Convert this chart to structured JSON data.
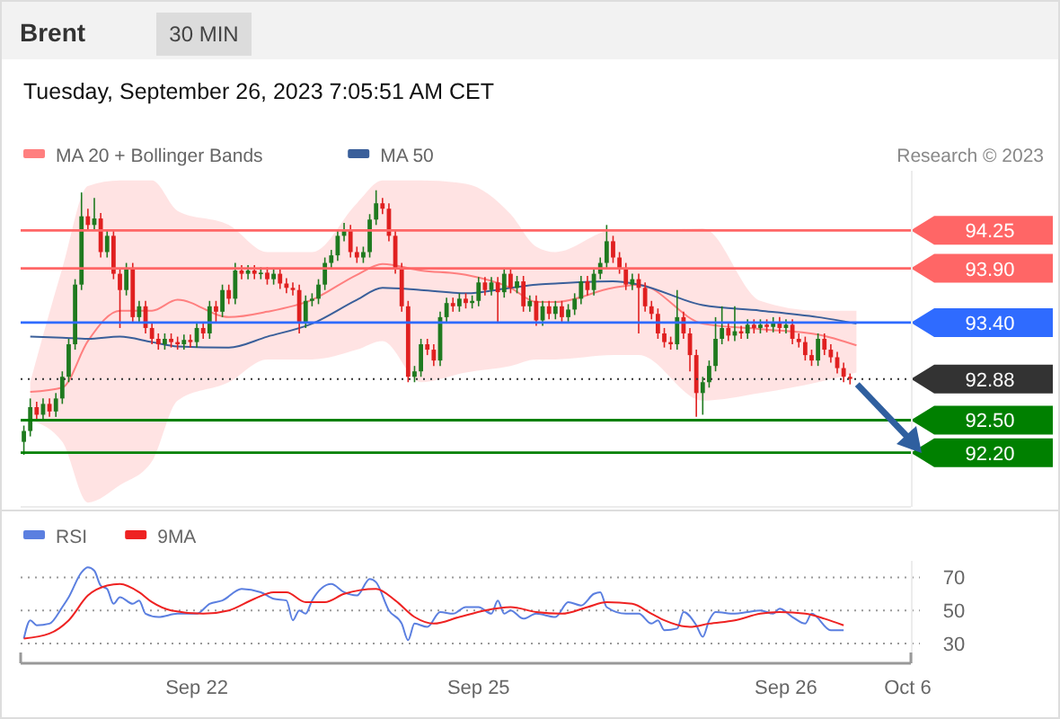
{
  "chart_data": [
    {
      "type": "candlestick",
      "title": "Brent",
      "subtitle": "Tuesday, September 26, 2023 7:05:51 AM CET",
      "annotations": [
        "30 MIN",
        "Research © 2023"
      ],
      "legend": "top left",
      "tick_labels": "y",
      "ylim": [
        91.7,
        94.8
      ],
      "yticks": [
        94.25,
        {
          "value": 93.9,
          "label": "93.90"
        },
        {
          "value": 93.4,
          "label": "93.40"
        },
        92.88,
        {
          "value": 92.5,
          "label": "92.50"
        },
        {
          "value": 92.2,
          "label": "92.20"
        }
      ],
      "categories": [
        null,
        null,
        null,
        null,
        null,
        null,
        null,
        null,
        null,
        null,
        null,
        null,
        null,
        null,
        null,
        null,
        null,
        null,
        null,
        null,
        null,
        null,
        null,
        null,
        null,
        null,
        null,
        null,
        null,
        null,
        null,
        null,
        null,
        null,
        null,
        null,
        null,
        null,
        null,
        null,
        null,
        null,
        null,
        null,
        null,
        null,
        null,
        null,
        null,
        null,
        null,
        null,
        null,
        null,
        null,
        null,
        null,
        null,
        null,
        null,
        null,
        null,
        null,
        null,
        null,
        null,
        null,
        null,
        null,
        null,
        null,
        null,
        null,
        null,
        null,
        null,
        null,
        null,
        null,
        null,
        null,
        null,
        null,
        null,
        null,
        null,
        null,
        null,
        null,
        null,
        null,
        null,
        null,
        null,
        null,
        null,
        null,
        null,
        null,
        null,
        null,
        null,
        null,
        null,
        null,
        null,
        null,
        null,
        null,
        null,
        null,
        null,
        null,
        null,
        null,
        null,
        null,
        null,
        null,
        null,
        null,
        null,
        null,
        null,
        null,
        null,
        null,
        null,
        null,
        null,
        null,
        null,
        null,
        null,
        null,
        null,
        null,
        null,
        null
      ],
      "ohlc": [
        [
          92.3,
          92.45,
          92.18,
          92.4
        ],
        [
          92.4,
          92.7,
          92.35,
          92.62
        ],
        [
          92.62,
          92.67,
          92.5,
          92.55
        ],
        [
          92.55,
          92.7,
          92.5,
          92.65
        ],
        [
          92.65,
          92.7,
          92.53,
          92.58
        ],
        [
          92.58,
          92.75,
          92.53,
          92.7
        ],
        [
          92.7,
          92.95,
          92.65,
          92.9
        ],
        [
          92.9,
          93.25,
          92.85,
          93.2
        ],
        [
          93.2,
          93.8,
          93.15,
          93.75
        ],
        [
          93.75,
          94.6,
          93.7,
          94.38
        ],
        [
          94.38,
          94.45,
          94.25,
          94.3
        ],
        [
          94.3,
          94.55,
          94.25,
          94.36
        ],
        [
          94.36,
          94.41,
          94.0,
          94.05
        ],
        [
          94.05,
          94.25,
          94.0,
          94.2
        ],
        [
          94.2,
          94.25,
          93.8,
          93.85
        ],
        [
          93.85,
          93.9,
          93.35,
          93.7
        ],
        [
          93.7,
          93.95,
          93.65,
          93.9
        ],
        [
          93.9,
          93.95,
          93.4,
          93.45
        ],
        [
          93.45,
          93.6,
          93.4,
          93.55
        ],
        [
          93.55,
          93.6,
          93.3,
          93.35
        ],
        [
          93.35,
          93.4,
          93.2,
          93.25
        ],
        [
          93.25,
          93.3,
          93.15,
          93.2
        ],
        [
          93.2,
          93.3,
          93.15,
          93.25
        ],
        [
          93.25,
          93.3,
          93.17,
          93.22
        ],
        [
          93.22,
          93.27,
          93.15,
          93.2
        ],
        [
          93.2,
          93.29,
          93.15,
          93.24
        ],
        [
          93.24,
          93.29,
          93.17,
          93.22
        ],
        [
          93.22,
          93.4,
          93.17,
          93.35
        ],
        [
          93.35,
          93.4,
          93.25,
          93.3
        ],
        [
          93.3,
          93.6,
          93.25,
          93.55
        ],
        [
          93.55,
          93.6,
          93.4,
          93.5
        ],
        [
          93.5,
          93.75,
          93.45,
          93.7
        ],
        [
          93.7,
          93.75,
          93.57,
          93.62
        ],
        [
          93.62,
          93.95,
          93.57,
          93.88
        ],
        [
          93.88,
          93.93,
          93.8,
          93.85
        ],
        [
          93.85,
          93.93,
          93.8,
          93.88
        ],
        [
          93.88,
          93.93,
          93.8,
          93.85
        ],
        [
          93.85,
          93.91,
          93.8,
          93.86
        ],
        [
          93.86,
          93.91,
          93.75,
          93.8
        ],
        [
          93.8,
          93.9,
          93.75,
          93.85
        ],
        [
          93.85,
          93.9,
          93.71,
          93.76
        ],
        [
          93.76,
          93.81,
          93.67,
          93.72
        ],
        [
          93.72,
          93.77,
          93.65,
          93.7
        ],
        [
          93.7,
          93.75,
          93.3,
          93.4
        ],
        [
          93.4,
          93.65,
          93.35,
          93.6
        ],
        [
          93.6,
          93.67,
          93.55,
          93.62
        ],
        [
          93.62,
          93.8,
          93.57,
          93.75
        ],
        [
          93.75,
          94.0,
          93.7,
          93.95
        ],
        [
          93.95,
          94.07,
          93.9,
          94.02
        ],
        [
          94.02,
          94.25,
          93.97,
          94.2
        ],
        [
          94.2,
          94.32,
          94.15,
          94.25
        ],
        [
          94.25,
          94.3,
          94.0,
          94.05
        ],
        [
          94.05,
          94.1,
          93.95,
          94.0
        ],
        [
          94.0,
          94.1,
          93.95,
          94.05
        ],
        [
          94.05,
          94.4,
          94.0,
          94.35
        ],
        [
          94.35,
          94.62,
          94.3,
          94.5
        ],
        [
          94.5,
          94.55,
          94.4,
          94.45
        ],
        [
          94.45,
          94.5,
          94.15,
          94.2
        ],
        [
          94.2,
          94.25,
          93.85,
          93.9
        ],
        [
          93.9,
          93.95,
          93.5,
          93.55
        ],
        [
          93.55,
          93.6,
          92.85,
          92.9
        ],
        [
          92.9,
          93.0,
          92.85,
          92.95
        ],
        [
          92.95,
          93.25,
          92.9,
          93.2
        ],
        [
          93.2,
          93.25,
          93.1,
          93.15
        ],
        [
          93.15,
          93.2,
          93.0,
          93.05
        ],
        [
          93.05,
          93.5,
          93.0,
          93.45
        ],
        [
          93.45,
          93.63,
          93.4,
          93.58
        ],
        [
          93.58,
          93.63,
          93.5,
          93.55
        ],
        [
          93.55,
          93.67,
          93.5,
          93.62
        ],
        [
          93.62,
          93.67,
          93.53,
          93.58
        ],
        [
          93.58,
          93.65,
          93.53,
          93.6
        ],
        [
          93.6,
          93.82,
          93.55,
          93.77
        ],
        [
          93.77,
          93.82,
          93.65,
          93.7
        ],
        [
          93.7,
          93.82,
          93.65,
          93.77
        ],
        [
          93.77,
          93.82,
          93.4,
          93.68
        ],
        [
          93.68,
          93.9,
          93.63,
          93.85
        ],
        [
          93.85,
          93.9,
          93.67,
          93.72
        ],
        [
          93.72,
          93.83,
          93.67,
          93.78
        ],
        [
          93.78,
          93.83,
          93.5,
          93.55
        ],
        [
          93.55,
          93.65,
          93.5,
          93.6
        ],
        [
          93.6,
          93.65,
          93.37,
          93.42
        ],
        [
          93.42,
          93.6,
          93.37,
          93.55
        ],
        [
          93.55,
          93.6,
          93.43,
          93.48
        ],
        [
          93.48,
          93.6,
          93.43,
          93.55
        ],
        [
          93.55,
          93.6,
          93.4,
          93.45
        ],
        [
          93.45,
          93.57,
          93.4,
          93.52
        ],
        [
          93.52,
          93.67,
          93.47,
          93.62
        ],
        [
          93.62,
          93.83,
          93.57,
          93.78
        ],
        [
          93.78,
          93.83,
          93.65,
          93.7
        ],
        [
          93.7,
          93.9,
          93.65,
          93.85
        ],
        [
          93.85,
          94.0,
          93.8,
          93.95
        ],
        [
          93.95,
          94.3,
          93.9,
          94.15
        ],
        [
          94.15,
          94.2,
          93.95,
          94.0
        ],
        [
          94.0,
          94.05,
          93.85,
          93.9
        ],
        [
          93.9,
          93.95,
          93.7,
          93.75
        ],
        [
          93.75,
          93.85,
          93.7,
          93.8
        ],
        [
          93.8,
          93.85,
          93.3,
          93.72
        ],
        [
          93.72,
          93.77,
          93.5,
          93.55
        ],
        [
          93.55,
          93.6,
          93.43,
          93.48
        ],
        [
          93.48,
          93.53,
          93.25,
          93.3
        ],
        [
          93.3,
          93.35,
          93.17,
          93.22
        ],
        [
          93.22,
          93.27,
          93.15,
          93.2
        ],
        [
          93.2,
          93.7,
          93.15,
          93.45
        ],
        [
          93.45,
          93.5,
          93.25,
          93.3
        ],
        [
          93.3,
          93.35,
          92.95,
          93.1
        ],
        [
          93.1,
          93.15,
          92.53,
          92.75
        ],
        [
          92.75,
          92.9,
          92.55,
          92.85
        ],
        [
          92.85,
          93.05,
          92.8,
          93.0
        ],
        [
          93.0,
          93.45,
          92.95,
          93.25
        ],
        [
          93.25,
          93.55,
          93.2,
          93.35
        ],
        [
          93.35,
          93.4,
          93.23,
          93.28
        ],
        [
          93.28,
          93.55,
          93.23,
          93.32
        ],
        [
          93.32,
          93.37,
          93.25,
          93.3
        ],
        [
          93.3,
          93.43,
          93.25,
          93.38
        ],
        [
          93.38,
          93.43,
          93.3,
          93.35
        ],
        [
          93.35,
          93.43,
          93.3,
          93.38
        ],
        [
          93.38,
          93.43,
          93.31,
          93.36
        ],
        [
          93.36,
          93.45,
          93.31,
          93.4
        ],
        [
          93.4,
          93.45,
          93.3,
          93.35
        ],
        [
          93.35,
          93.43,
          93.3,
          93.38
        ],
        [
          93.38,
          93.43,
          93.2,
          93.25
        ],
        [
          93.25,
          93.3,
          93.17,
          93.22
        ],
        [
          93.22,
          93.27,
          93.05,
          93.1
        ],
        [
          93.1,
          93.15,
          93.0,
          93.05
        ],
        [
          93.05,
          93.3,
          93.0,
          93.25
        ],
        [
          93.25,
          93.3,
          93.1,
          93.15
        ],
        [
          93.15,
          93.2,
          93.03,
          93.08
        ],
        [
          93.08,
          93.13,
          92.93,
          92.98
        ],
        [
          92.98,
          93.03,
          92.85,
          92.9
        ],
        [
          92.9,
          92.93,
          92.83,
          92.88
        ],
        null,
        null,
        null,
        null,
        null,
        null,
        null,
        null,
        null
      ],
      "series": [
        {
          "type": "line",
          "name": "MA 20 + Bollinger Bands",
          "color": "#ff7f7f",
          "values": [
            null,
            92.76,
            null,
            null,
            null,
            null,
            92.8,
            null,
            null,
            null,
            93.23,
            null,
            null,
            null,
            null,
            93.51,
            null,
            null,
            null,
            null,
            93.51,
            null,
            null,
            null,
            93.61,
            null,
            null,
            null,
            null,
            null,
            null,
            null,
            93.45,
            null,
            null,
            null,
            null,
            null,
            93.5,
            null,
            null,
            null,
            null,
            null,
            null,
            93.61,
            null,
            null,
            null,
            null,
            null,
            null,
            93.84,
            null,
            null,
            null,
            93.94,
            null,
            null,
            null,
            null,
            null,
            93.88,
            null,
            null,
            null,
            null,
            null,
            null,
            93.84,
            null,
            null,
            null,
            null,
            null,
            null,
            93.72,
            null,
            null,
            null,
            93.59,
            null,
            null,
            93.59,
            null,
            null,
            null,
            null,
            null,
            null,
            null,
            null,
            93.72,
            null,
            null,
            null,
            93.75,
            null,
            null,
            null,
            null,
            null,
            null,
            null,
            null,
            null,
            93.39,
            null,
            null,
            null,
            null,
            null,
            null,
            null,
            null,
            93.34,
            null,
            null,
            null,
            null,
            null,
            null,
            null,
            null,
            93.29,
            null,
            null,
            null,
            null,
            null,
            93.19,
            null,
            null,
            null,
            null,
            null,
            null,
            null,
            null
          ],
          "upper": [
            null,
            92.85,
            null,
            null,
            null,
            null,
            93.9,
            null,
            null,
            null,
            94.66,
            null,
            null,
            null,
            null,
            94.71,
            null,
            null,
            null,
            null,
            94.71,
            null,
            null,
            null,
            94.43,
            null,
            null,
            null,
            null,
            null,
            null,
            null,
            94.3,
            null,
            null,
            null,
            null,
            null,
            94.05,
            null,
            null,
            null,
            null,
            null,
            null,
            94.05,
            null,
            null,
            null,
            null,
            null,
            null,
            94.5,
            null,
            null,
            null,
            94.71,
            null,
            null,
            null,
            null,
            null,
            94.71,
            null,
            null,
            null,
            null,
            null,
            null,
            94.68,
            null,
            null,
            null,
            null,
            null,
            null,
            94.4,
            null,
            null,
            null,
            94.1,
            null,
            null,
            94.05,
            null,
            null,
            null,
            null,
            null,
            null,
            null,
            null,
            94.25,
            null,
            null,
            null,
            94.25,
            null,
            null,
            null,
            null,
            null,
            null,
            null,
            null,
            null,
            94.27,
            null,
            null,
            null,
            null,
            null,
            null,
            null,
            null,
            93.6,
            null,
            null,
            null,
            null,
            null,
            null,
            null,
            null,
            93.51,
            null,
            null,
            null,
            null,
            null,
            93.51,
            null,
            null,
            null,
            null,
            null,
            null,
            null,
            null
          ],
          "lower": [
            null,
            92.5,
            null,
            null,
            null,
            null,
            92.3,
            null,
            null,
            null,
            91.74,
            null,
            null,
            null,
            null,
            91.9,
            null,
            null,
            null,
            null,
            92.12,
            null,
            null,
            null,
            92.68,
            null,
            null,
            null,
            null,
            null,
            null,
            null,
            92.85,
            null,
            null,
            null,
            null,
            null,
            93.06,
            null,
            null,
            null,
            null,
            null,
            null,
            93.06,
            null,
            null,
            null,
            null,
            null,
            null,
            93.15,
            null,
            null,
            null,
            93.23,
            null,
            null,
            null,
            null,
            null,
            92.85,
            null,
            null,
            null,
            null,
            null,
            null,
            92.94,
            null,
            null,
            null,
            null,
            null,
            null,
            93.0,
            null,
            null,
            null,
            93.06,
            null,
            null,
            93.06,
            null,
            null,
            null,
            null,
            null,
            null,
            null,
            null,
            93.1,
            null,
            null,
            null,
            93.1,
            null,
            null,
            null,
            null,
            null,
            null,
            null,
            null,
            null,
            92.68,
            null,
            null,
            null,
            null,
            null,
            null,
            null,
            null,
            92.75,
            null,
            null,
            null,
            null,
            null,
            null,
            null,
            null,
            92.85,
            null,
            null,
            null,
            null,
            null,
            92.94,
            null,
            null,
            null,
            null,
            null,
            null,
            null,
            null
          ]
        },
        {
          "type": "line",
          "name": "MA 50",
          "color": "#3a5f9a",
          "values": [
            null,
            93.27,
            null,
            null,
            null,
            null,
            93.26,
            null,
            null,
            null,
            93.25,
            null,
            null,
            null,
            null,
            93.27,
            null,
            null,
            null,
            null,
            93.22,
            null,
            null,
            null,
            93.18,
            null,
            null,
            null,
            null,
            null,
            null,
            null,
            93.17,
            null,
            null,
            null,
            null,
            null,
            93.27,
            null,
            null,
            null,
            null,
            null,
            null,
            93.39,
            null,
            null,
            null,
            null,
            null,
            null,
            93.61,
            null,
            null,
            null,
            93.72,
            null,
            null,
            null,
            null,
            null,
            93.7,
            null,
            null,
            null,
            null,
            null,
            null,
            93.67,
            null,
            null,
            null,
            null,
            null,
            null,
            93.72,
            null,
            null,
            null,
            93.75,
            null,
            null,
            93.76,
            null,
            null,
            null,
            null,
            null,
            null,
            null,
            null,
            93.78,
            null,
            null,
            null,
            93.75,
            null,
            null,
            null,
            null,
            null,
            null,
            null,
            null,
            null,
            93.56,
            null,
            null,
            null,
            null,
            null,
            null,
            null,
            null,
            93.51,
            null,
            null,
            null,
            null,
            null,
            null,
            null,
            null,
            93.45,
            null,
            null,
            null,
            null,
            null,
            93.39,
            null,
            null,
            null,
            null,
            null,
            null,
            null,
            null
          ]
        }
      ],
      "ref_lines": [
        {
          "axis": "y",
          "value": 94.25,
          "color": "#ff6666"
        },
        {
          "axis": "y",
          "value": 93.9,
          "color": "#ff6666"
        },
        {
          "axis": "y",
          "value": 93.4,
          "color": "#2f6bff"
        },
        {
          "axis": "y",
          "value": 92.88,
          "color": "#333333",
          "line_style": "dotted"
        },
        {
          "axis": "y",
          "value": 92.5,
          "color": "#008000"
        },
        {
          "axis": "y",
          "value": 92.2,
          "color": "#008000"
        }
      ]
    },
    {
      "type": "line",
      "legend": "top left",
      "grid": "y",
      "ylim": [
        18,
        80
      ],
      "yticks": [
        30,
        50,
        70
      ],
      "categories": [
        null,
        null,
        null,
        null,
        null,
        null,
        null,
        null,
        null,
        null,
        null,
        null,
        null,
        null,
        null,
        null,
        null,
        null,
        null,
        null,
        null,
        null,
        null,
        null,
        null,
        null,
        null,
        "Sep 22",
        null,
        null,
        null,
        null,
        null,
        null,
        null,
        null,
        null,
        null,
        null,
        null,
        null,
        null,
        null,
        null,
        null,
        null,
        null,
        null,
        null,
        null,
        null,
        null,
        null,
        null,
        null,
        null,
        null,
        null,
        null,
        null,
        null,
        null,
        null,
        null,
        null,
        null,
        null,
        null,
        null,
        null,
        null,
        "Sep 25",
        null,
        null,
        null,
        null,
        null,
        null,
        null,
        null,
        null,
        null,
        null,
        null,
        null,
        null,
        null,
        null,
        null,
        null,
        null,
        null,
        null,
        null,
        null,
        null,
        null,
        null,
        null,
        null,
        null,
        null,
        null,
        null,
        null,
        null,
        null,
        null,
        null,
        null,
        null,
        null,
        null,
        null,
        null,
        null,
        null,
        null,
        null,
        "Sep 26",
        null,
        null,
        null,
        null,
        null,
        null,
        null,
        null,
        null,
        null,
        null,
        null,
        null,
        null,
        null,
        null,
        null,
        null,
        "Oct 6"
      ],
      "series": [
        {
          "name": "RSI",
          "color": "#5b7fe0",
          "values": [
            33,
            44,
            41,
            null,
            42,
            null,
            52,
            58,
            null,
            73,
            76,
            74,
            65,
            63,
            54,
            58,
            null,
            54,
            56,
            48,
            null,
            46,
            null,
            null,
            48,
            null,
            null,
            48,
            null,
            54,
            null,
            56,
            null,
            null,
            63,
            null,
            null,
            61,
            null,
            57,
            null,
            56,
            44,
            50,
            48,
            56,
            null,
            null,
            66,
            null,
            61,
            null,
            59,
            null,
            69,
            67,
            null,
            50,
            null,
            42,
            32,
            42,
            null,
            40,
            null,
            49,
            null,
            48,
            null,
            52,
            null,
            52,
            null,
            48,
            56,
            48,
            50,
            null,
            45,
            null,
            48,
            null,
            null,
            46,
            null,
            55,
            null,
            53,
            null,
            60,
            61,
            52,
            null,
            null,
            48,
            null,
            48,
            null,
            42,
            44,
            38,
            null,
            39,
            49,
            null,
            41,
            34,
            44,
            49,
            null,
            null,
            48,
            null,
            49,
            null,
            50,
            null,
            48,
            51,
            null,
            46,
            null,
            42,
            48,
            null,
            null,
            38,
            null,
            38,
            null,
            null,
            null,
            null,
            null,
            null,
            null,
            null,
            null,
            null
          ]
        },
        {
          "name": "9MA",
          "color": "#ee2222",
          "values": [
            33,
            null,
            null,
            null,
            36,
            null,
            null,
            44,
            null,
            null,
            59,
            null,
            null,
            65,
            null,
            66,
            null,
            null,
            61,
            null,
            55,
            null,
            null,
            50,
            null,
            null,
            null,
            null,
            48,
            null,
            null,
            null,
            50,
            null,
            null,
            null,
            57,
            null,
            null,
            61,
            null,
            61,
            null,
            null,
            55,
            null,
            null,
            55,
            null,
            null,
            60,
            null,
            null,
            null,
            null,
            63,
            null,
            null,
            56,
            null,
            null,
            46,
            null,
            null,
            42,
            null,
            null,
            null,
            46,
            null,
            null,
            null,
            50,
            null,
            null,
            null,
            52,
            null,
            null,
            null,
            49,
            null,
            null,
            null,
            48,
            null,
            null,
            null,
            52,
            null,
            null,
            55,
            null,
            null,
            null,
            54,
            null,
            null,
            48,
            null,
            44,
            null,
            null,
            null,
            40,
            null,
            null,
            42,
            null,
            null,
            null,
            44,
            null,
            null,
            null,
            48,
            null,
            null,
            49,
            null,
            null,
            null,
            48,
            null,
            null,
            45,
            null,
            null,
            41,
            null,
            null,
            null,
            null,
            null,
            null,
            null,
            null,
            null,
            null
          ]
        }
      ]
    }
  ]
}
